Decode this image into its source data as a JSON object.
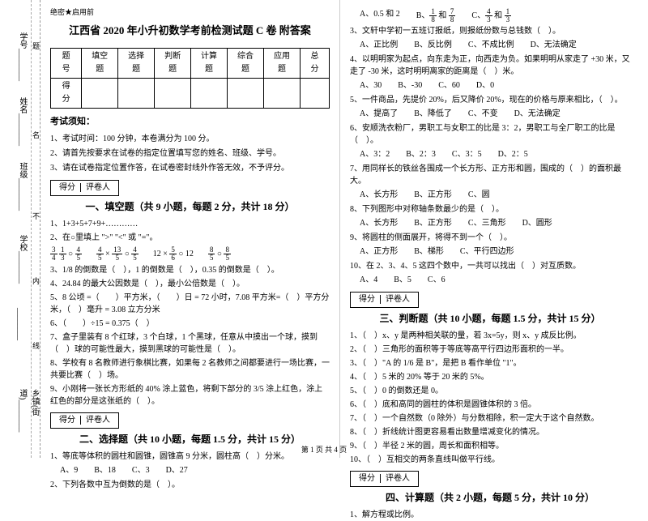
{
  "sidebar": {
    "labels": [
      "学号________",
      "姓名________",
      "班级________",
      "学校________",
      "________",
      "乡镇(街道)________"
    ],
    "vchars": [
      "题",
      "名",
      "不",
      "内",
      "线",
      "封"
    ]
  },
  "secret": "绝密★启用前",
  "title": "江西省 2020 年小升初数学考前检测试题 C 卷  附答案",
  "scoreTable": {
    "headers": [
      "题 号",
      "填空题",
      "选择题",
      "判断题",
      "计算题",
      "综合题",
      "应用题",
      "总分"
    ],
    "row2": "得 分"
  },
  "notice": {
    "title": "考试须知：",
    "items": [
      "1、考试时间：100 分钟，本卷满分为 100 分。",
      "2、请首先按要求在试卷的指定位置填写您的姓名、班级、学号。",
      "3、请在试卷指定位置作答，在试卷密封线外作答无效，不予评分。"
    ]
  },
  "scorer": {
    "c1": "得分",
    "c2": "评卷人"
  },
  "sections": {
    "s1": "一、填空题（共 9 小题，每题 2 分，共计 18 分）",
    "s2": "二、选择题（共 10 小题，每题 1.5 分，共计 15 分）",
    "s3": "三、判断题（共 10 小题，每题 1.5 分，共计 15 分）",
    "s4": "四、计算题（共 2 小题，每题 5 分，共计 10 分）"
  },
  "fill": {
    "q1": "1、1+3+5+7+9+…………",
    "q2": "2、在○里填上 \">\" \"<\" 或 \"=\"。",
    "m1a": "3",
    "m1b": "4",
    "m1c": "1",
    "m1d": "3",
    "m2a": "4",
    "m2b": "5",
    "m2c": "13",
    "m2d": "5",
    "m3": "12",
    "m3a": "5",
    "m3b": "6",
    "m3c": "12",
    "m4a": "8",
    "m4b": "5",
    "m4c": "8",
    "m4d": "5",
    "q3": "3、1/8 的倒数是（　），1 的倒数是（　），0.35 的倒数是（　）。",
    "q4": "4、24.84 的最大公因数是（　），最小公倍数是（　）。",
    "q5": "5、8 公顷 =（　　）平方米，（　　）日 = 72 小时，7.08 平方米=（　）平方分米，（　）毫升 = 3.08 立方分米",
    "q6": "6、（　　）÷15 = 0.375（　）",
    "q7": "7、盒子里装有 8 个红球，3 个白球，1 个黑球，任意从中摸出一个球，摸到（　）球的可能性最大，摸到黑球的可能性是（　）。",
    "q8": "8、学校有 8 名教师进行象棋比赛，如果每 2 名教师之间都要进行一场比赛，一共要比赛（　）场。",
    "q9": "9、小刚将一张长方形纸的 40% 涂上蓝色，将剩下部分的 3/5 涂上红色，涂上红色的部分是这张纸的（　）。"
  },
  "choice": {
    "q1": "1、等底等体积的圆柱和圆锥，圆锥高 9 分米，圆柱高（　）分米。",
    "q1o": [
      "A、9",
      "B、18",
      "C、3",
      "D、27"
    ],
    "q2": "2、下列各数中互为倒数的是（　）。",
    "q2oA": "A、0.5 和 2",
    "q2oB_l": "B、",
    "q2oB_a": "1",
    "q2oB_b": "8",
    "q2oB_mid": " 和 ",
    "q2oB_c": "7",
    "q2oB_d": "8",
    "q2oC_l": "C、",
    "q2oC_a": "4",
    "q2oC_b": "3",
    "q2oC_mid": " 和 ",
    "q2oC_c": "1",
    "q2oC_d": "3",
    "q3": "3、文轩中学初一五班订报纸，则报纸份数与总钱数（　）。",
    "q3o": [
      "A、正比例",
      "B、反比例",
      "C、不成比例",
      "D、无法确定"
    ],
    "q4": "4、以明明家为起点，向东走为正，向西走为负。如果明明从家走了 +30 米，又走了 -30 米，这时明明离家的距离是（　）米。",
    "q4o": [
      "A、30",
      "B、-30",
      "C、60",
      "D、0"
    ],
    "q5": "5、一件商品，先提价 20%，后又降价 20%，现在的价格与原来相比，（　）。",
    "q5o": [
      "A、提高了",
      "B、降低了",
      "C、不变",
      "D、无法确定"
    ],
    "q6": "6、安顺洗衣粉厂，男职工与女职工的比是 3：2，男职工与全厂职工的比是（　）。",
    "q6o": [
      "A、3：2",
      "B、2：3",
      "C、3：5",
      "D、2：5"
    ],
    "q7": "7、用同样长的铁丝各围成一个长方形、正方形和圆，围成的（　）的面积最大。",
    "q7o": [
      "A、长方形",
      "B、正方形",
      "C、圆"
    ],
    "q8": "8、下列图形中对称轴条数最少的是（　）。",
    "q8o": [
      "A、长方形",
      "B、正方形",
      "C、三角形",
      "D、圆形"
    ],
    "q9": "9、将圆柱的侧面展开，将得不到一个（　）。",
    "q9o": [
      "A、正方形",
      "B、梯形",
      "C、平行四边形"
    ],
    "q10": "10、在 2、3、4、5 这四个数中，一共可以找出（　）对互质数。",
    "q10o": [
      "A、4",
      "B、5",
      "C、6"
    ]
  },
  "judge": {
    "q1": "1、（　）x、y 是两种相关联的量，若 3x=5y，则 x、y 成反比例。",
    "q2": "2、（　）三角形的面积等于等底等高平行四边形面积的一半。",
    "q3": "3、（　）\"A 的 1/6 是 B\"，是把 B 看作单位 \"1\"。",
    "q4": "4、（　）5 米的 20% 等于 20 米的 5%。",
    "q5": "5、（　）0 的倒数还是 0。",
    "q6": "6、（　）底和高同的圆柱的体积是圆锥体积的 3 倍。",
    "q7": "7、（　）一个自然数（0 除外）与分数相除，积一定大于这个自然数。",
    "q8": "8、（　）折线统计图更容易看出数量增减变化的情况。",
    "q9": "9、（　）半径 2 米的圆，周长和面积相等。",
    "q10": "10、（　）互相交的两条直线叫做平行线。"
  },
  "calc": {
    "q1": "1、解方程或比例。"
  },
  "footer": "第 1 页  共 4 页"
}
